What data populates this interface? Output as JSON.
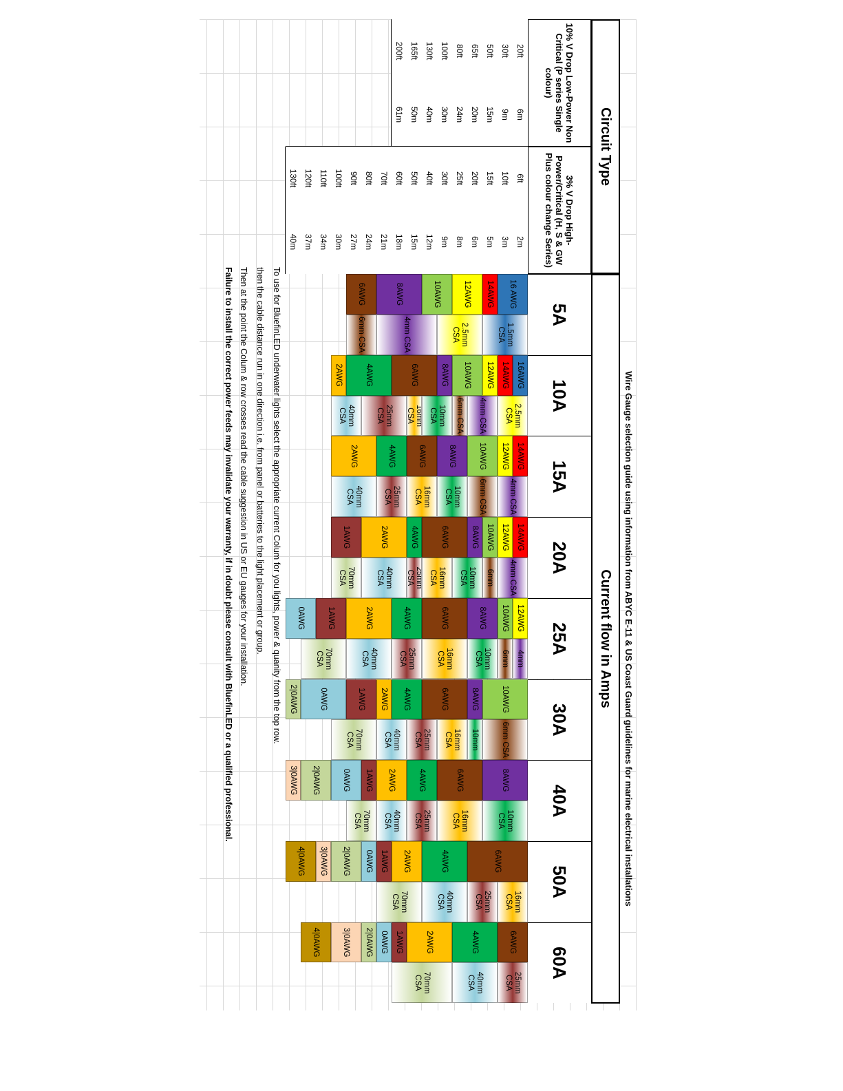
{
  "heading": "Wire Gauge selection guide using information from ABYC E-11 & US Coast Guard guidelines for marine electrical installations",
  "circuit_type_header": "Circuit Type",
  "current_flow_header": "Current flow in Amps",
  "col_10pct_header": "10% V Drop  Low-Power  Non Critical (P series Single colour)",
  "col_3pct_header": "3% V Drop High-Power/Critical (H, S & GW Plus colour change Series)",
  "distances_10pct": [
    {
      "ft": "20ft",
      "m": "6m"
    },
    {
      "ft": "30ft",
      "m": "9m"
    },
    {
      "ft": "50ft",
      "m": "15m"
    },
    {
      "ft": "65ft",
      "m": "20m"
    },
    {
      "ft": "80ft",
      "m": "24m"
    },
    {
      "ft": "100ft",
      "m": "30m"
    },
    {
      "ft": "130ft",
      "m": "40m"
    },
    {
      "ft": "165ft",
      "m": "50m"
    },
    {
      "ft": "200ft",
      "m": "61m"
    }
  ],
  "distances_3pct": [
    {
      "ft": "6ft",
      "m": "2m"
    },
    {
      "ft": "10ft",
      "m": "3m"
    },
    {
      "ft": "15ft",
      "m": "5m"
    },
    {
      "ft": "20ft",
      "m": "6m"
    },
    {
      "ft": "25ft",
      "m": "8m"
    },
    {
      "ft": "30ft",
      "m": "9m"
    },
    {
      "ft": "40ft",
      "m": "12m"
    },
    {
      "ft": "50ft",
      "m": "15m"
    },
    {
      "ft": "60ft",
      "m": "18m"
    },
    {
      "ft": "70ft",
      "m": "21m"
    },
    {
      "ft": "80ft",
      "m": "24m"
    },
    {
      "ft": "90ft",
      "m": "27m"
    },
    {
      "ft": "100ft",
      "m": "30m"
    },
    {
      "ft": "110ft",
      "m": "34m"
    },
    {
      "ft": "120ft",
      "m": "37m"
    },
    {
      "ft": "130ft",
      "m": "40m"
    }
  ],
  "amps": [
    "5A",
    "10A",
    "15A",
    "20A",
    "25A",
    "30A",
    "40A",
    "50A",
    "60A"
  ],
  "colors": {
    "16AWG": "#2e75b6",
    "14AWG": "#ff0000",
    "12AWG": "#ffff00",
    "10AWG": "#92d050",
    "8AWG": "#7030a0",
    "6AWG": "#843c0c",
    "4AWG": "#00b050",
    "2AWG": "#ffc000",
    "1AWG": "#953735",
    "0AWG": "#92cddc",
    "2|0AWG": "#c4d79b",
    "3|0AWG": "#fcd5b4",
    "4|0AWG": "#bf9000"
  },
  "columns": [
    {
      "awg": [
        {
          "l": "16 AWG",
          "r": [
            1,
            2
          ],
          "c": "16AWG"
        },
        {
          "l": "14AWG",
          "r": [
            3,
            3
          ],
          "c": "14AWG"
        },
        {
          "l": "12AWG",
          "r": [
            4,
            5
          ],
          "c": "12AWG"
        },
        {
          "l": "10AWG",
          "r": [
            6,
            7
          ],
          "c": "10AWG"
        },
        {
          "l": "8AWG",
          "r": [
            8,
            10
          ],
          "c": "8AWG"
        },
        {
          "l": "6AWG",
          "r": [
            11,
            12
          ],
          "c": "6AWG"
        }
      ],
      "csa": [
        {
          "l": "1.5mm CSA",
          "r": [
            1,
            3
          ],
          "c": "16AWG"
        },
        {
          "l": "2.5mm CSA",
          "r": [
            4,
            6
          ],
          "c": "12AWG"
        },
        {
          "l": "4mm CSA",
          "r": [
            7,
            10
          ],
          "c": "8AWG"
        },
        {
          "l": "6mm CSA",
          "r": [
            11,
            12
          ],
          "c": "6AWG"
        }
      ]
    },
    {
      "awg": [
        {
          "l": "16AWG",
          "r": [
            1,
            1
          ],
          "c": "16AWG"
        },
        {
          "l": "14AWG",
          "r": [
            2,
            2
          ],
          "c": "14AWG"
        },
        {
          "l": "12AWG",
          "r": [
            3,
            3
          ],
          "c": "12AWG"
        },
        {
          "l": "10AWG",
          "r": [
            4,
            5
          ],
          "c": "10AWG"
        },
        {
          "l": "8AWG",
          "r": [
            6,
            6
          ],
          "c": "8AWG"
        },
        {
          "l": "6AWG",
          "r": [
            7,
            9
          ],
          "c": "6AWG"
        },
        {
          "l": "4AWG",
          "r": [
            10,
            12
          ],
          "c": "4AWG"
        },
        {
          "l": "2AWG",
          "r": [
            13,
            13
          ],
          "c": "2AWG"
        }
      ],
      "csa": [
        {
          "l": "2.5mm CSA",
          "r": [
            1,
            2
          ],
          "c": "12AWG"
        },
        {
          "l": "4mm CSA",
          "r": [
            3,
            4
          ],
          "c": "8AWG"
        },
        {
          "l": "6mm CSA",
          "r": [
            5,
            5
          ],
          "c": "6AWG"
        },
        {
          "l": "10mm CSA",
          "r": [
            6,
            7
          ],
          "c": "4AWG"
        },
        {
          "l": "16mm CSA",
          "r": [
            8,
            8
          ],
          "c": "2AWG"
        },
        {
          "l": "25mm CSA",
          "r": [
            9,
            11
          ],
          "c": "1AWG"
        },
        {
          "l": "40mm CSA",
          "r": [
            12,
            13
          ],
          "c": "0AWG"
        }
      ]
    },
    {
      "awg": [
        {
          "l": "14AWG",
          "r": [
            1,
            1
          ],
          "c": "14AWG"
        },
        {
          "l": "12AWG",
          "r": [
            2,
            2
          ],
          "c": "12AWG"
        },
        {
          "l": "10AWG",
          "r": [
            3,
            4
          ],
          "c": "10AWG"
        },
        {
          "l": "8AWG",
          "r": [
            5,
            6
          ],
          "c": "8AWG"
        },
        {
          "l": "6AWG",
          "r": [
            7,
            8
          ],
          "c": "6AWG"
        },
        {
          "l": "4AWG",
          "r": [
            9,
            10
          ],
          "c": "4AWG"
        },
        {
          "l": "2AWG",
          "r": [
            11,
            13
          ],
          "c": "2AWG"
        }
      ],
      "csa": [
        {
          "l": "4mm CSA",
          "r": [
            1,
            2
          ],
          "c": "8AWG"
        },
        {
          "l": "6mm CSA",
          "r": [
            3,
            4
          ],
          "c": "6AWG"
        },
        {
          "l": "10mm CSA",
          "r": [
            5,
            6
          ],
          "c": "4AWG"
        },
        {
          "l": "16mm CSA",
          "r": [
            7,
            8
          ],
          "c": "2AWG"
        },
        {
          "l": "25mm CSA",
          "r": [
            9,
            10
          ],
          "c": "1AWG"
        },
        {
          "l": "40mm CSA",
          "r": [
            11,
            13
          ],
          "c": "0AWG"
        }
      ]
    },
    {
      "awg": [
        {
          "l": "14AWG",
          "r": [
            1,
            1
          ],
          "c": "14AWG"
        },
        {
          "l": "12AWG",
          "r": [
            2,
            2
          ],
          "c": "12AWG"
        },
        {
          "l": "10AWG",
          "r": [
            3,
            3
          ],
          "c": "10AWG"
        },
        {
          "l": "8AWG",
          "r": [
            4,
            4
          ],
          "c": "8AWG"
        },
        {
          "l": "6AWG",
          "r": [
            5,
            7
          ],
          "c": "6AWG"
        },
        {
          "l": "4AWG",
          "r": [
            8,
            8
          ],
          "c": "4AWG"
        },
        {
          "l": "2AWG",
          "r": [
            9,
            11
          ],
          "c": "2AWG"
        },
        {
          "l": "1AWG",
          "r": [
            12,
            13
          ],
          "c": "1AWG"
        }
      ],
      "csa": [
        {
          "l": "4mm CSA",
          "r": [
            1,
            2
          ],
          "c": "8AWG"
        },
        {
          "l": "6mm",
          "r": [
            3,
            3
          ],
          "c": "6AWG"
        },
        {
          "l": "10mm CSA",
          "r": [
            4,
            5
          ],
          "c": "4AWG"
        },
        {
          "l": "16mm CSA",
          "r": [
            6,
            7
          ],
          "c": "2AWG"
        },
        {
          "l": "25mm CSA",
          "r": [
            8,
            8
          ],
          "c": "1AWG"
        },
        {
          "l": "40mm CSA",
          "r": [
            9,
            11
          ],
          "c": "0AWG"
        },
        {
          "l": "70mm CSA",
          "r": [
            12,
            13
          ],
          "c": "2|0AWG"
        }
      ]
    },
    {
      "awg": [
        {
          "l": "12AWG",
          "r": [
            1,
            1
          ],
          "c": "12AWG"
        },
        {
          "l": "10AWG",
          "r": [
            2,
            2
          ],
          "c": "10AWG"
        },
        {
          "l": "8AWG",
          "r": [
            3,
            4
          ],
          "c": "8AWG"
        },
        {
          "l": "6AWG",
          "r": [
            5,
            7
          ],
          "c": "6AWG"
        },
        {
          "l": "4AWG",
          "r": [
            8,
            9
          ],
          "c": "4AWG"
        },
        {
          "l": "2AWG",
          "r": [
            10,
            12
          ],
          "c": "2AWG"
        },
        {
          "l": "1AWG",
          "r": [
            13,
            14
          ],
          "c": "1AWG"
        },
        {
          "l": "0AWG",
          "r": [
            15,
            16
          ],
          "c": "0AWG"
        }
      ],
      "csa": [
        {
          "l": "4mm",
          "r": [
            1,
            1
          ],
          "c": "8AWG"
        },
        {
          "l": "6mm",
          "r": [
            2,
            2
          ],
          "c": "6AWG"
        },
        {
          "l": "10mm CSA",
          "r": [
            3,
            4
          ],
          "c": "4AWG"
        },
        {
          "l": "16mm CSA",
          "r": [
            5,
            7
          ],
          "c": "2AWG"
        },
        {
          "l": "25mm CSA",
          "r": [
            8,
            9
          ],
          "c": "1AWG"
        },
        {
          "l": "40mm CSA",
          "r": [
            10,
            12
          ],
          "c": "0AWG"
        },
        {
          "l": "70mm CSA",
          "r": [
            13,
            15
          ],
          "c": "2|0AWG"
        }
      ]
    },
    {
      "awg": [
        {
          "l": "10AWG",
          "r": [
            1,
            3
          ],
          "c": "10AWG"
        },
        {
          "l": "8AWG",
          "r": [
            4,
            4
          ],
          "c": "8AWG"
        },
        {
          "l": "6AWG",
          "r": [
            5,
            7
          ],
          "c": "6AWG"
        },
        {
          "l": "4AWG",
          "r": [
            8,
            9
          ],
          "c": "4AWG"
        },
        {
          "l": "2AWG",
          "r": [
            10,
            10
          ],
          "c": "2AWG"
        },
        {
          "l": "1AWG",
          "r": [
            11,
            12
          ],
          "c": "1AWG"
        },
        {
          "l": "0AWG",
          "r": [
            13,
            15
          ],
          "c": "0AWG"
        },
        {
          "l": "2|0AWG",
          "r": [
            16,
            16
          ],
          "c": "2|0AWG"
        }
      ],
      "csa": [
        {
          "l": "6mm CSA",
          "r": [
            1,
            3
          ],
          "c": "6AWG"
        },
        {
          "l": "10mm",
          "r": [
            4,
            4
          ],
          "c": "4AWG"
        },
        {
          "l": "16mm CSA",
          "r": [
            5,
            6
          ],
          "c": "2AWG"
        },
        {
          "l": "25mm CSA",
          "r": [
            7,
            8
          ],
          "c": "1AWG"
        },
        {
          "l": "40mm CSA",
          "r": [
            9,
            10
          ],
          "c": "0AWG"
        },
        {
          "l": "70mm CSA",
          "r": [
            11,
            13
          ],
          "c": "2|0AWG"
        }
      ]
    },
    {
      "awg": [
        {
          "l": "8AWG",
          "r": [
            1,
            3
          ],
          "c": "8AWG"
        },
        {
          "l": "6AWG",
          "r": [
            4,
            6
          ],
          "c": "6AWG"
        },
        {
          "l": "4AWG",
          "r": [
            7,
            8
          ],
          "c": "4AWG"
        },
        {
          "l": "2AWG",
          "r": [
            9,
            10
          ],
          "c": "2AWG"
        },
        {
          "l": "1AWG",
          "r": [
            11,
            11
          ],
          "c": "1AWG"
        },
        {
          "l": "0AWG",
          "r": [
            12,
            13
          ],
          "c": "0AWG"
        },
        {
          "l": "2|0AWG",
          "r": [
            14,
            15
          ],
          "c": "2|0AWG"
        },
        {
          "l": "3|0AWG",
          "r": [
            16,
            16
          ],
          "c": "3|0AWG"
        }
      ],
      "csa": [
        {
          "l": "10mm CSA",
          "r": [
            1,
            3
          ],
          "c": "4AWG"
        },
        {
          "l": "16mm CSA",
          "r": [
            4,
            6
          ],
          "c": "2AWG"
        },
        {
          "l": "25mm CSA",
          "r": [
            7,
            8
          ],
          "c": "1AWG"
        },
        {
          "l": "40mm CSA",
          "r": [
            9,
            10
          ],
          "c": "0AWG"
        },
        {
          "l": "70mm CSA",
          "r": [
            11,
            12
          ],
          "c": "2|0AWG"
        }
      ]
    },
    {
      "awg": [
        {
          "l": "6AWG",
          "r": [
            1,
            4
          ],
          "c": "6AWG"
        },
        {
          "l": "4AWG",
          "r": [
            5,
            7
          ],
          "c": "4AWG"
        },
        {
          "l": "2AWG",
          "r": [
            8,
            9
          ],
          "c": "2AWG"
        },
        {
          "l": "1AWG",
          "r": [
            10,
            10
          ],
          "c": "1AWG"
        },
        {
          "l": "0AWG",
          "r": [
            11,
            11
          ],
          "c": "0AWG"
        },
        {
          "l": "2|0AWG",
          "r": [
            12,
            13
          ],
          "c": "2|0AWG"
        },
        {
          "l": "3|0AWG",
          "r": [
            14,
            14
          ],
          "c": "3|0AWG"
        },
        {
          "l": "4|0AWG",
          "r": [
            15,
            16
          ],
          "c": "4|0AWG"
        }
      ],
      "csa": [
        {
          "l": "16mm CSA",
          "r": [
            1,
            2
          ],
          "c": "2AWG"
        },
        {
          "l": "25mm CSA",
          "r": [
            3,
            4
          ],
          "c": "1AWG"
        },
        {
          "l": "40mm CSA",
          "r": [
            5,
            7
          ],
          "c": "0AWG"
        },
        {
          "l": "70mm CSA",
          "r": [
            8,
            10
          ],
          "c": "2|0AWG"
        }
      ]
    },
    {
      "awg": [
        {
          "l": "6AWG",
          "r": [
            1,
            2
          ],
          "c": "6AWG"
        },
        {
          "l": "4AWG",
          "r": [
            3,
            5
          ],
          "c": "4AWG"
        },
        {
          "l": "2AWG",
          "r": [
            6,
            8
          ],
          "c": "2AWG"
        },
        {
          "l": "1AWG",
          "r": [
            9,
            9
          ],
          "c": "1AWG"
        },
        {
          "l": "0AWG",
          "r": [
            10,
            10
          ],
          "c": "0AWG"
        },
        {
          "l": "2|0AWG",
          "r": [
            11,
            11
          ],
          "c": "2|0AWG"
        },
        {
          "l": "3|0AWG",
          "r": [
            12,
            13
          ],
          "c": "3|0AWG"
        },
        {
          "l": "4|0AWG",
          "r": [
            14,
            15
          ],
          "c": "4|0AWG"
        }
      ],
      "csa": [
        {
          "l": "25mm CSA",
          "r": [
            1,
            2
          ],
          "c": "1AWG"
        },
        {
          "l": "40mm CSA",
          "r": [
            3,
            5
          ],
          "c": "0AWG"
        },
        {
          "l": "70mm CSA",
          "r": [
            6,
            9
          ],
          "c": "2|0AWG"
        }
      ]
    }
  ],
  "notes": [
    "To use for BluefinLED underwater lights select the appropriate current Colum for you lights, power &  quanity from the top row.",
    "then the cable distance run in one direction i.e. from panel or batteries to the light placement or group.",
    "Then at the point the Colum & row crosses read the cable suggestion in US or EU gauges for your installation."
  ],
  "warning": "Failure to install the correct power feeds may invalidate your warranty, if in doubt please consult with BluefinLED or a qualified professional."
}
